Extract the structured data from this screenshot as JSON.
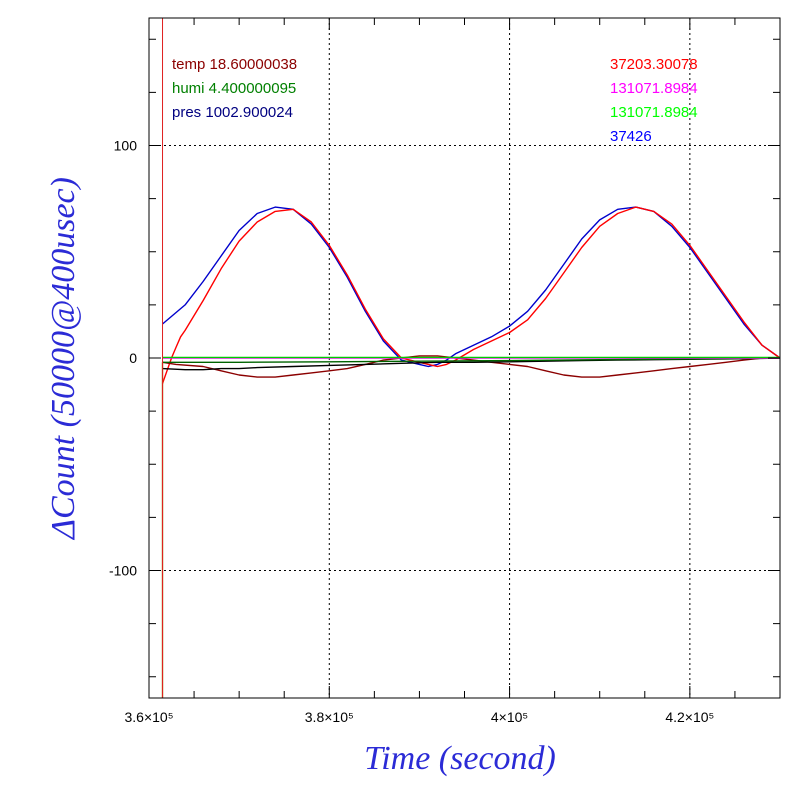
{
  "chart_data": {
    "type": "line",
    "xlabel": "Time (second)",
    "ylabel": "ΔCount (50000@400usec)",
    "xlim": [
      360000,
      430000
    ],
    "ylim": [
      -160,
      160
    ],
    "x_ticks": [
      360000,
      380000,
      400000,
      420000
    ],
    "x_tick_labels": [
      "3.6×10⁵",
      "3.8×10⁵",
      "4×10⁵",
      "4.2×10⁵"
    ],
    "y_ticks": [
      -100,
      0,
      100
    ],
    "y_tick_labels": [
      "-100",
      "0",
      "100"
    ],
    "grid": "dotted at major ticks",
    "vertical_line": {
      "x": 361500,
      "color": "#e02020"
    },
    "legend_left": [
      {
        "text": "temp 18.60000038",
        "color": "#8b0000"
      },
      {
        "text": "humi 4.400000095",
        "color": "#008000"
      },
      {
        "text": "pres 1002.900024",
        "color": "#000080"
      }
    ],
    "legend_right": [
      {
        "text": "37203.30078",
        "color": "#ff0000"
      },
      {
        "text": "131071.8984",
        "color": "#ff00ff"
      },
      {
        "text": "131071.8984",
        "color": "#00ff00"
      },
      {
        "text": "37426",
        "color": "#0000ff"
      }
    ],
    "series": [
      {
        "color": "#0000cc",
        "x": [
          361500,
          364000,
          366000,
          368000,
          370000,
          372000,
          374000,
          376000,
          378000,
          380000,
          382000,
          384000,
          386000,
          388000,
          390000,
          391000,
          392000,
          393000,
          394000,
          396000,
          398000,
          400000,
          402000,
          404000,
          406000,
          408000,
          410000,
          412000,
          414000,
          416000,
          418000,
          420000,
          422000,
          424000,
          426000,
          428000,
          430000
        ],
        "y": [
          16,
          25,
          36,
          48,
          60,
          68,
          71,
          70,
          63,
          52,
          38,
          22,
          8,
          -1,
          -3,
          -4,
          -3,
          -1,
          2,
          6,
          10,
          15,
          22,
          32,
          44,
          56,
          65,
          70,
          71,
          69,
          62,
          52,
          40,
          28,
          16,
          6,
          0
        ]
      },
      {
        "color": "#ff0000",
        "x": [
          361500,
          362000,
          362500,
          363000,
          363500,
          364000,
          366000,
          368000,
          370000,
          372000,
          374000,
          376000,
          378000,
          380000,
          382000,
          384000,
          386000,
          388000,
          390000,
          391000,
          392000,
          393000,
          394000,
          396000,
          398000,
          400000,
          402000,
          404000,
          406000,
          408000,
          410000,
          412000,
          414000,
          416000,
          418000,
          420000,
          422000,
          424000,
          426000,
          428000,
          430000
        ],
        "y": [
          -12,
          -6,
          0,
          5,
          10,
          13,
          27,
          42,
          55,
          64,
          69,
          70,
          64,
          53,
          39,
          23,
          9,
          0,
          -2,
          -3,
          -4,
          -3,
          -1,
          4,
          8,
          12,
          18,
          28,
          40,
          52,
          62,
          68,
          71,
          69,
          63,
          53,
          41,
          29,
          17,
          6,
          0
        ]
      },
      {
        "color": "#8b0000",
        "x": [
          361500,
          363000,
          366000,
          368000,
          370000,
          372000,
          374000,
          376000,
          378000,
          380000,
          382000,
          384000,
          386000,
          388000,
          390000,
          392000,
          394000,
          396000,
          398000,
          400000,
          402000,
          404000,
          406000,
          408000,
          410000,
          412000,
          414000,
          416000,
          418000,
          420000,
          422000,
          424000,
          426000,
          428000,
          430000
        ],
        "y": [
          -2,
          -3,
          -4,
          -6,
          -8,
          -9,
          -9,
          -8,
          -7,
          -6,
          -5,
          -3,
          -1,
          0,
          1,
          1,
          0,
          -1,
          -2,
          -3,
          -4,
          -6,
          -8,
          -9,
          -9,
          -8,
          -7,
          -6,
          -5,
          -4,
          -3,
          -2,
          -1,
          0,
          0
        ]
      },
      {
        "color": "#000000",
        "x": [
          361500,
          364000,
          366000,
          368000,
          370000,
          372000,
          376000,
          380000,
          384000,
          388000,
          392000,
          396000,
          400000,
          404000,
          408000,
          412000,
          416000,
          420000,
          424000,
          428000,
          430000
        ],
        "y": [
          -5,
          -5.5,
          -5.5,
          -5,
          -5,
          -4.5,
          -4,
          -3.5,
          -3,
          -2.5,
          -2,
          -2,
          -1.8,
          -1.5,
          -1.2,
          -1,
          -0.8,
          -0.6,
          -0.4,
          -0.2,
          0
        ]
      },
      {
        "color": "#006400",
        "x": [
          361500,
          370000,
          380000,
          390000,
          400000,
          410000,
          420000,
          430000
        ],
        "y": [
          -2,
          -2,
          -1.8,
          -1.5,
          -1.2,
          -0.8,
          -0.4,
          0
        ]
      },
      {
        "color": "#ff00ff",
        "x": [
          361500,
          430000
        ],
        "y": [
          0,
          0
        ]
      },
      {
        "color": "#00cc00",
        "x": [
          361500,
          430000
        ],
        "y": [
          0.3,
          0.3
        ]
      },
      {
        "color": "#808000",
        "x": [
          361500,
          361500
        ],
        "y": [
          -160,
          -2
        ]
      }
    ]
  }
}
